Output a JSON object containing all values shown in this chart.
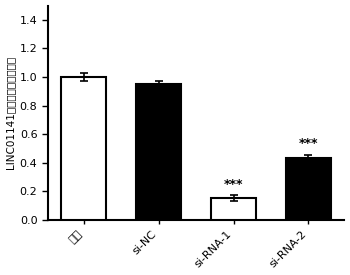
{
  "categories": [
    "对照",
    "si-NC",
    "si-RNA-1",
    "si-RNA-2"
  ],
  "values": [
    1.0,
    0.95,
    0.15,
    0.43
  ],
  "errors": [
    0.03,
    0.02,
    0.02,
    0.025
  ],
  "bar_colors": [
    "white",
    "black",
    "white",
    "black"
  ],
  "bar_edgecolors": [
    "black",
    "black",
    "black",
    "black"
  ],
  "significance": [
    "",
    "",
    "***",
    "***"
  ],
  "ylabel": "LINC01141相对表达量（倍数）",
  "ylim": [
    0,
    1.5
  ],
  "yticks": [
    0.0,
    0.2,
    0.4,
    0.6,
    0.8,
    1.0,
    1.2,
    1.4
  ],
  "bar_width": 0.6,
  "figsize": [
    3.5,
    2.75
  ],
  "dpi": 100
}
